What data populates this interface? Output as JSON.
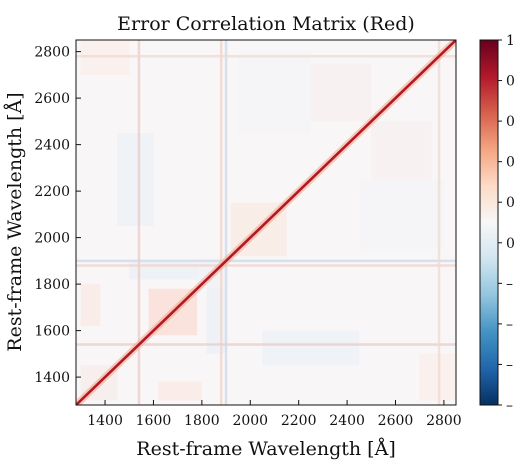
{
  "chart_data": {
    "type": "heatmap",
    "title": "Error Correlation Matrix (Red)",
    "xlabel": "Rest-frame Wavelength [Å]",
    "ylabel": "Rest-frame Wavelength [Å]",
    "xlim": [
      1280,
      2850
    ],
    "ylim": [
      1280,
      2850
    ],
    "x_ticks": [
      "1400",
      "1600",
      "1800",
      "2000",
      "2200",
      "2400",
      "2600",
      "2800"
    ],
    "y_ticks": [
      "1400",
      "1600",
      "1800",
      "2000",
      "2200",
      "2400",
      "2600",
      "2800"
    ],
    "x_tick_values": [
      1400,
      1600,
      1800,
      2000,
      2200,
      2400,
      2600,
      2800
    ],
    "y_tick_values": [
      1400,
      1600,
      1800,
      2000,
      2200,
      2400,
      2600,
      2800
    ],
    "diagonal_value": 1.0,
    "off_diagonal_range": [
      -0.1,
      0.1
    ],
    "colormap": "RdBu_r",
    "colorbar": {
      "labels": [
        "1",
        "0",
        "0",
        "0",
        "0",
        "0",
        "–",
        "–",
        "–",
        "–"
      ],
      "colors": [
        "#67001f",
        "#b2182b",
        "#d6604d",
        "#f4a582",
        "#fddbc7",
        "#f7f7f7",
        "#d1e5f0",
        "#92c5de",
        "#4393c3",
        "#2166ac",
        "#053061"
      ]
    }
  }
}
